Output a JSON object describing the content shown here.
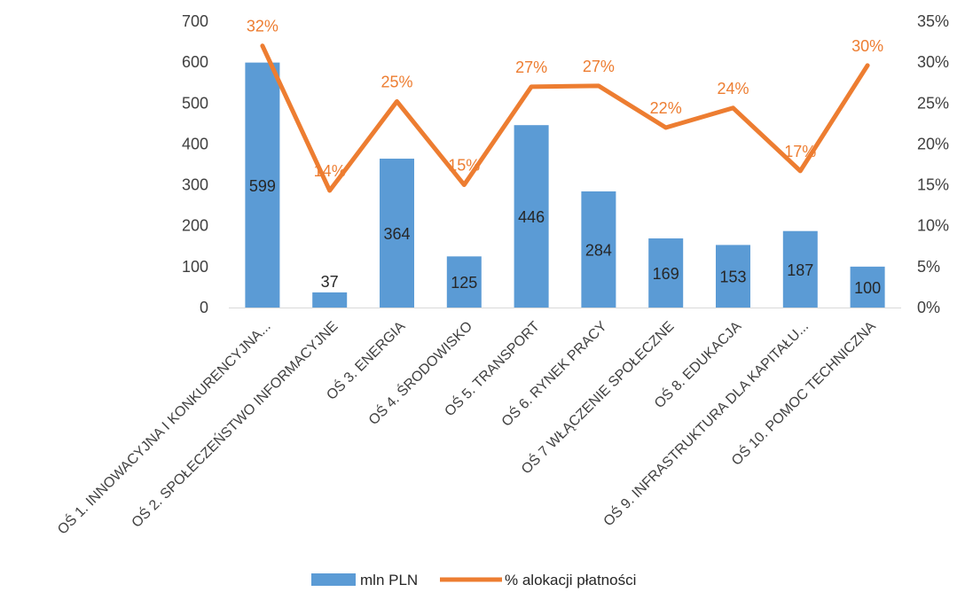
{
  "chart_data": {
    "type": "bar",
    "categories": [
      "OŚ 1. INNOWACYJNA I KONKURENCYJNA...",
      "OŚ 2. SPOŁECZEŃSTWO INFORMACYJNE",
      "OŚ 3. ENERGIA",
      "OŚ 4. ŚRODOWISKO",
      "OŚ 5. TRANSPORT",
      "OŚ 6. RYNEK PRACY",
      "OŚ 7 WŁĄCZENIE SPOŁECZNE",
      "OŚ 8. EDUKACJA",
      "OŚ 9. INFRASTRUKTURA DLA KAPITAŁU...",
      "OŚ 10. POMOC TECHNICZNA"
    ],
    "series": [
      {
        "name": "mln PLN",
        "type": "bar",
        "axis": "left",
        "color": "#5b9bd5",
        "values": [
          599,
          37,
          364,
          125,
          446,
          284,
          169,
          153,
          187,
          100
        ],
        "labels": [
          "599",
          "37",
          "364",
          "125",
          "446",
          "284",
          "169",
          "153",
          "187",
          "100"
        ]
      },
      {
        "name": "% alokacji płatności",
        "type": "line",
        "axis": "right",
        "color": "#ed7d31",
        "values": [
          32,
          14.3,
          25.2,
          15,
          27,
          27.1,
          22,
          24.4,
          16.7,
          29.6
        ],
        "labels": [
          "32%",
          "14%",
          "25%",
          "15%",
          "27%",
          "27%",
          "22%",
          "24%",
          "17%",
          "30%"
        ]
      }
    ],
    "y_left": {
      "min": 0,
      "max": 700,
      "ticks": [
        0,
        100,
        200,
        300,
        400,
        500,
        600,
        700
      ],
      "tick_labels": [
        "0",
        "100",
        "200",
        "300",
        "400",
        "500",
        "600",
        "700"
      ]
    },
    "y_right": {
      "min": 0,
      "max": 35,
      "ticks": [
        0,
        5,
        10,
        15,
        20,
        25,
        30,
        35
      ],
      "tick_labels": [
        "0%",
        "5%",
        "10%",
        "15%",
        "20%",
        "25%",
        "30%",
        "35%"
      ]
    },
    "grid": false,
    "legend_position": "bottom",
    "legend": [
      {
        "label": "mln PLN",
        "color": "#5b9bd5",
        "kind": "bar"
      },
      {
        "label": "% alokacji płatności",
        "color": "#ed7d31",
        "kind": "line"
      }
    ]
  }
}
